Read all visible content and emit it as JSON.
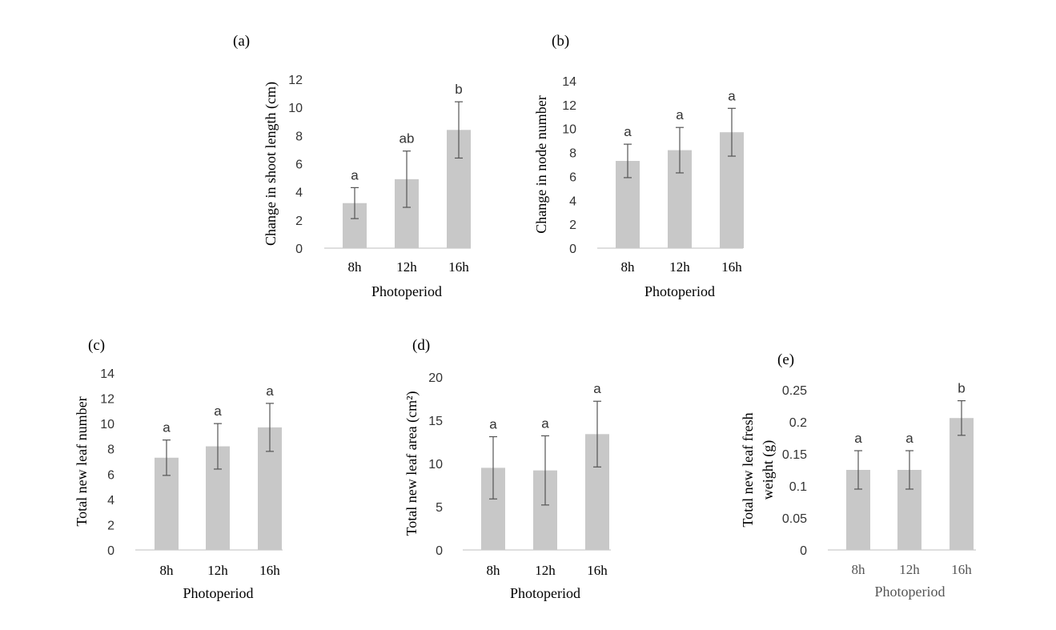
{
  "chart_data": [
    {
      "type": "bar",
      "panel_label": "(a)",
      "categories": [
        "8h",
        "12h",
        "16h"
      ],
      "values": [
        3.2,
        4.9,
        8.4
      ],
      "errors": [
        1.1,
        2.0,
        2.0
      ],
      "significance": [
        "a",
        "ab",
        "b"
      ],
      "xlabel": "Photoperiod",
      "ylabel": "Change in shoot length (cm)",
      "ylim": [
        0,
        12
      ],
      "yticks": [
        "0",
        "2",
        "4",
        "6",
        "8",
        "10",
        "12"
      ],
      "bar_color": "#c8c8c8",
      "grid": false,
      "legend": "none"
    },
    {
      "type": "bar",
      "panel_label": "(b)",
      "categories": [
        "8h",
        "12h",
        "16h"
      ],
      "values": [
        7.3,
        8.2,
        9.7
      ],
      "errors": [
        1.4,
        1.9,
        2.0
      ],
      "significance": [
        "a",
        "a",
        "a"
      ],
      "xlabel": "Photoperiod",
      "ylabel": "Change in node number",
      "ylim": [
        0,
        14
      ],
      "yticks": [
        "0",
        "2",
        "4",
        "6",
        "8",
        "10",
        "12",
        "14"
      ],
      "bar_color": "#c8c8c8",
      "grid": false,
      "legend": "none"
    },
    {
      "type": "bar",
      "panel_label": "(c)",
      "categories": [
        "8h",
        "12h",
        "16h"
      ],
      "values": [
        7.3,
        8.2,
        9.7
      ],
      "errors": [
        1.4,
        1.8,
        1.9
      ],
      "significance": [
        "a",
        "a",
        "a"
      ],
      "xlabel": "Photoperiod",
      "ylabel": "Total new leaf number",
      "ylim": [
        0,
        14
      ],
      "yticks": [
        "0",
        "2",
        "4",
        "6",
        "8",
        "10",
        "12",
        "14"
      ],
      "bar_color": "#c8c8c8",
      "grid": false,
      "legend": "none"
    },
    {
      "type": "bar",
      "panel_label": "(d)",
      "categories": [
        "8h",
        "12h",
        "16h"
      ],
      "values": [
        9.5,
        9.2,
        13.4
      ],
      "errors": [
        3.6,
        4.0,
        3.8
      ],
      "significance": [
        "a",
        "a",
        "a"
      ],
      "xlabel": "Photoperiod",
      "ylabel": "Total new leaf area (cm²)",
      "ylim": [
        0,
        20
      ],
      "yticks": [
        "0",
        "5",
        "10",
        "15",
        "20"
      ],
      "bar_color": "#c8c8c8",
      "grid": false,
      "legend": "none"
    },
    {
      "type": "bar",
      "panel_label": "(e)",
      "categories": [
        "8h",
        "12h",
        "16h"
      ],
      "values": [
        0.125,
        0.125,
        0.206
      ],
      "errors": [
        0.03,
        0.03,
        0.027
      ],
      "significance": [
        "a",
        "a",
        "b"
      ],
      "xlabel": "Photoperiod",
      "ylabel": "Total new leaf fresh weight (g)",
      "ylabel_lines": [
        "Total new leaf fresh",
        "weight (g)"
      ],
      "ylim": [
        0,
        0.25
      ],
      "yticks": [
        "0",
        "0.05",
        "0.1",
        "0.15",
        "0.2",
        "0.25"
      ],
      "bar_color": "#c8c8c8",
      "grid": false,
      "legend": "none"
    }
  ]
}
